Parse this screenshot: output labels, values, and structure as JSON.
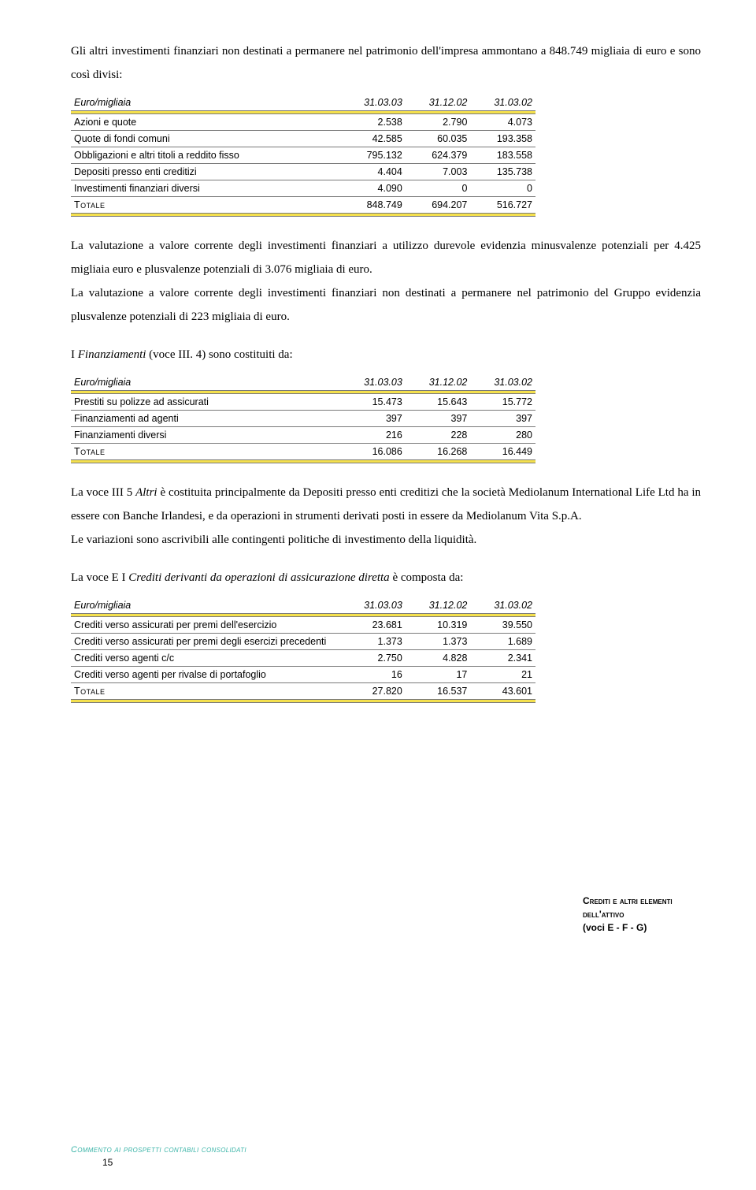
{
  "intro1": "Gli altri investimenti finanziari non destinati a permanere nel patrimonio dell'impresa ammontano a 848.749 migliaia di euro e sono così divisi:",
  "table1": {
    "header": {
      "c0": "Euro/migliaia",
      "c1": "31.03.03",
      "c2": "31.12.02",
      "c3": "31.03.02"
    },
    "rows": [
      {
        "label": "Azioni e quote",
        "v1": "2.538",
        "v2": "2.790",
        "v3": "4.073"
      },
      {
        "label": "Quote di fondi comuni",
        "v1": "42.585",
        "v2": "60.035",
        "v3": "193.358"
      },
      {
        "label": "Obbligazioni e altri titoli a reddito fisso",
        "v1": "795.132",
        "v2": "624.379",
        "v3": "183.558"
      },
      {
        "label": "Depositi presso enti creditizi",
        "v1": "4.404",
        "v2": "7.003",
        "v3": "135.738"
      },
      {
        "label": "Investimenti finanziari diversi",
        "v1": "4.090",
        "v2": "0",
        "v3": "0"
      }
    ],
    "totale": {
      "label": "Totale",
      "v1": "848.749",
      "v2": "694.207",
      "v3": "516.727"
    }
  },
  "para2": "La valutazione a valore corrente degli investimenti finanziari a utilizzo durevole evidenzia minusvalenze potenziali per 4.425 migliaia euro e plusvalenze potenziali di 3.076 migliaia di euro.",
  "para3": "La valutazione a valore corrente degli investimenti finanziari non destinati a permanere nel patrimonio del Gruppo evidenzia plusvalenze potenziali di 223 migliaia di euro.",
  "intro2a": "I ",
  "intro2b": "Finanziamenti",
  "intro2c": " (voce III. 4) sono costituiti da:",
  "table2": {
    "header": {
      "c0": "Euro/migliaia",
      "c1": "31.03.03",
      "c2": "31.12.02",
      "c3": "31.03.02"
    },
    "rows": [
      {
        "label": "Prestiti su polizze ad assicurati",
        "v1": "15.473",
        "v2": "15.643",
        "v3": "15.772"
      },
      {
        "label": "Finanziamenti ad agenti",
        "v1": "397",
        "v2": "397",
        "v3": "397"
      },
      {
        "label": "Finanziamenti diversi",
        "v1": "216",
        "v2": "228",
        "v3": "280"
      }
    ],
    "totale": {
      "label": "Totale",
      "v1": "16.086",
      "v2": "16.268",
      "v3": "16.449"
    }
  },
  "para4a": "La voce III 5 ",
  "para4b": "Altri",
  "para4c": " è costituita principalmente da Depositi presso enti creditizi che la società Mediolanum International Life Ltd ha in essere con Banche Irlandesi, e da operazioni in strumenti derivati posti in essere da  Mediolanum Vita S.p.A.",
  "para5": "Le variazioni sono ascrivibili alle contingenti politiche di investimento della liquidità.",
  "intro3a": "La voce E I ",
  "intro3b": "Crediti derivanti da operazioni di assicurazione diretta",
  "intro3c": " è composta da:",
  "table3": {
    "header": {
      "c0": "Euro/migliaia",
      "c1": "31.03.03",
      "c2": "31.12.02",
      "c3": "31.03.02"
    },
    "rows": [
      {
        "label": "Crediti verso assicurati per premi dell'esercizio",
        "v1": "23.681",
        "v2": "10.319",
        "v3": "39.550"
      },
      {
        "label": "Crediti verso assicurati per premi degli esercizi precedenti",
        "v1": "1.373",
        "v2": "1.373",
        "v3": "1.689"
      },
      {
        "label": "Crediti verso agenti c/c",
        "v1": "2.750",
        "v2": "4.828",
        "v3": "2.341"
      },
      {
        "label": "Crediti verso agenti per rivalse di portafoglio",
        "v1": "16",
        "v2": "17",
        "v3": "21"
      }
    ],
    "totale": {
      "label": "Totale",
      "v1": "27.820",
      "v2": "16.537",
      "v3": "43.601"
    }
  },
  "sidebar": {
    "line1": "Crediti e altri elementi",
    "line2": "dell'attivo",
    "line3": "(voci E - F - G)"
  },
  "footer": {
    "label": "Commento ai prospetti contabili consolidati",
    "page": "15"
  }
}
